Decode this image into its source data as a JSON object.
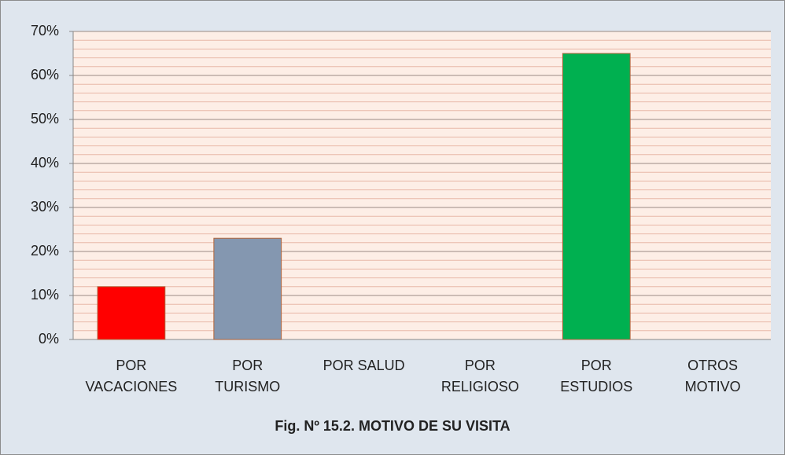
{
  "chart_data": {
    "type": "bar",
    "title": "Fig. Nº 15.2. MOTIVO DE SU VISITA",
    "categories": [
      "POR VACACIONES",
      "POR TURISMO",
      "POR SALUD",
      "POR RELIGIOSO",
      "POR ESTUDIOS",
      "OTROS MOTIVO"
    ],
    "values": [
      12,
      23,
      0,
      0,
      65,
      0
    ],
    "colors": [
      "#ff0000",
      "#8497b0",
      null,
      null,
      "#00b050",
      null
    ],
    "ylim": [
      0,
      70
    ],
    "yticks": [
      {
        "value": 0,
        "label": "0%"
      },
      {
        "value": 10,
        "label": "10%"
      },
      {
        "value": 20,
        "label": "20%"
      },
      {
        "value": 30,
        "label": "30%"
      },
      {
        "value": 40,
        "label": "40%"
      },
      {
        "value": 50,
        "label": "50%"
      },
      {
        "value": 60,
        "label": "60%"
      },
      {
        "value": 70,
        "label": "70%"
      }
    ],
    "grid": true
  }
}
